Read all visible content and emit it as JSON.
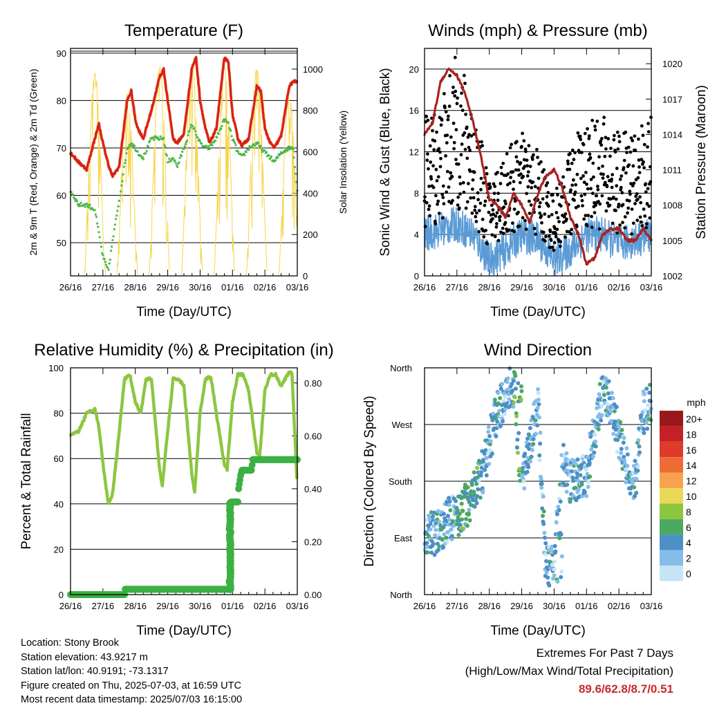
{
  "chart_data": [
    {
      "type": "line",
      "title": "Temperature (F)",
      "xlabel": "Time (Day/UTC)",
      "ylabel": "2m & 9m T (Red, Orange) & 2m Td (Green)",
      "y2label": "Solar Insolation (Yellow)",
      "x_ticks": [
        "26/16",
        "27/16",
        "28/16",
        "29/16",
        "30/16",
        "01/16",
        "02/16",
        "03/16"
      ],
      "ylim": [
        43,
        91
      ],
      "y_ticks": [
        50,
        60,
        70,
        80,
        90
      ],
      "y2lim": [
        0,
        1100
      ],
      "y2_ticks": [
        0,
        200,
        400,
        600,
        800,
        1000
      ],
      "x_hours": [
        0,
        6,
        12,
        18,
        21,
        24,
        28,
        31,
        36,
        42,
        45,
        48,
        50,
        54,
        60,
        66,
        69,
        72,
        76,
        79,
        84,
        90,
        93,
        96,
        100,
        103,
        108,
        114,
        117,
        120,
        124,
        127,
        132,
        138,
        141,
        144,
        148,
        151,
        156,
        162,
        165,
        168
      ],
      "series": [
        {
          "name": "2m T",
          "color": "#d71f1f",
          "values": [
            69,
            67,
            65.5,
            72,
            75,
            71,
            66.5,
            64,
            66,
            80,
            82,
            76,
            74,
            72,
            78,
            85,
            86.5,
            80,
            72,
            71,
            73,
            87,
            89,
            80,
            74,
            71,
            74,
            89,
            88,
            77,
            72,
            70.5,
            72,
            83,
            82,
            74,
            71,
            70,
            72.5,
            83,
            84,
            84
          ]
        },
        {
          "name": "2m Td",
          "color": "#4db848",
          "values": [
            61,
            58,
            58,
            57,
            52,
            47,
            44,
            50,
            59,
            70,
            71,
            70,
            69,
            68,
            72,
            72,
            72,
            67,
            68,
            66,
            70,
            75,
            73,
            71,
            70,
            70,
            72,
            76,
            75,
            72,
            69,
            68,
            70,
            71,
            70,
            69,
            68,
            67,
            69,
            70,
            70,
            61
          ]
        },
        {
          "name": "Solar Insolation",
          "color": "#f6d54a",
          "peaks": [
            980,
            880,
            1010,
            1020,
            1010,
            1000,
            870
          ]
        }
      ]
    },
    {
      "type": "line",
      "title": "Winds (mph) & Pressure (mb)",
      "xlabel": "Time (Day/UTC)",
      "ylabel": "Sonic Wind & Gust (Blue, Black)",
      "y2label": "Station Pressure (Maroon)",
      "x_ticks": [
        "26/16",
        "27/16",
        "28/16",
        "29/16",
        "30/16",
        "01/16",
        "02/16",
        "03/16"
      ],
      "ylim": [
        0,
        22
      ],
      "y_ticks": [
        0,
        4,
        8,
        12,
        16,
        20
      ],
      "y2lim": [
        1002,
        1021.3
      ],
      "y2_ticks": [
        1002,
        1005,
        1008,
        1011,
        1014,
        1017,
        1020
      ],
      "series": [
        {
          "name": "Pressure",
          "color": "#a82323",
          "x_hours": [
            0,
            6,
            12,
            18,
            24,
            30,
            36,
            42,
            48,
            54,
            60,
            66,
            72,
            78,
            84,
            90,
            96,
            102,
            108,
            114,
            120,
            126,
            132,
            138,
            144,
            150,
            156,
            162,
            168
          ],
          "values": [
            1014,
            1015,
            1018.5,
            1019.6,
            1019,
            1017.5,
            1015,
            1012,
            1008.5,
            1008,
            1007,
            1009,
            1008,
            1006.5,
            1009,
            1010.5,
            1011,
            1009.5,
            1007,
            1005.5,
            1003,
            1003.5,
            1005.5,
            1006,
            1006,
            1005,
            1005,
            1006,
            1005
          ]
        },
        {
          "name": "Sonic Wind",
          "color": "#5b9bd5",
          "x_hours": [
            0,
            12,
            24,
            36,
            48,
            60,
            72,
            84,
            96,
            108,
            120,
            132,
            144,
            156,
            168
          ],
          "values": [
            4,
            4.5,
            5,
            4,
            1.5,
            2.5,
            4,
            3.5,
            1.5,
            2.5,
            4,
            4,
            3,
            3.5,
            4
          ]
        },
        {
          "name": "Gust",
          "color": "#000000",
          "x_hours": [
            0,
            12,
            24,
            36,
            48,
            60,
            72,
            84,
            96,
            108,
            120,
            132,
            144,
            156,
            168
          ],
          "values": [
            10,
            11,
            14,
            11,
            6,
            8,
            9,
            8,
            5,
            8,
            10,
            10,
            9,
            9,
            10
          ]
        }
      ]
    },
    {
      "type": "line",
      "title": "Relative Humidity (%) & Precipitation (in)",
      "xlabel": "Time (Day/UTC)",
      "ylabel": "Percent & Total Rainfall",
      "x_ticks": [
        "26/16",
        "27/16",
        "28/16",
        "29/16",
        "30/16",
        "01/16",
        "02/16",
        "03/16"
      ],
      "ylim": [
        0,
        100
      ],
      "y_ticks": [
        0,
        20,
        40,
        60,
        80,
        100
      ],
      "y2lim": [
        0,
        0.857
      ],
      "y2_ticks": [
        "0.00",
        "0.20",
        "0.40",
        "0.60",
        "0.80"
      ],
      "series": [
        {
          "name": "Relative Humidity",
          "color": "#8cc63f",
          "x_hours": [
            0,
            6,
            12,
            18,
            21,
            24,
            28,
            31,
            34,
            40,
            44,
            48,
            52,
            56,
            60,
            66,
            68,
            72,
            76,
            80,
            84,
            90,
            92,
            96,
            100,
            104,
            108,
            114,
            116,
            120,
            124,
            128,
            132,
            138,
            140,
            144,
            148,
            152,
            156,
            162,
            164,
            168
          ],
          "values": [
            70,
            72,
            80,
            82,
            74,
            58,
            40,
            44,
            60,
            95,
            97,
            85,
            80,
            95,
            95,
            55,
            48,
            72,
            95,
            95,
            92,
            52,
            45,
            80,
            95,
            96,
            80,
            57,
            55,
            85,
            97,
            97,
            90,
            63,
            60,
            90,
            97,
            97,
            92,
            98,
            98,
            47
          ]
        },
        {
          "name": "Total Rainfall",
          "color": "#3cb043",
          "x_hours": [
            0,
            40,
            40.5,
            117,
            117.5,
            118,
            119,
            124,
            124.5,
            126,
            127,
            134,
            135,
            168
          ],
          "values": [
            0,
            0,
            0.02,
            0.02,
            0.05,
            0.33,
            0.35,
            0.35,
            0.4,
            0.45,
            0.47,
            0.47,
            0.51,
            0.51
          ]
        }
      ]
    },
    {
      "type": "scatter",
      "title": "Wind Direction",
      "xlabel": "Time (Day/UTC)",
      "ylabel": "Direction (Colored By Speed)",
      "x_ticks": [
        "26/16",
        "27/16",
        "28/16",
        "29/16",
        "30/16",
        "01/16",
        "02/16",
        "03/16"
      ],
      "y_ticks": [
        "North",
        "East",
        "South",
        "West",
        "North"
      ],
      "ylim": [
        0,
        360
      ],
      "x_hours": [
        0,
        6,
        12,
        18,
        24,
        30,
        36,
        40,
        44,
        48,
        54,
        60,
        66,
        72,
        78,
        84,
        90,
        96,
        102,
        108,
        114,
        120,
        126,
        132,
        138,
        144,
        150,
        156,
        162,
        168
      ],
      "values": [
        100,
        95,
        105,
        120,
        125,
        140,
        155,
        180,
        200,
        240,
        290,
        320,
        330,
        170,
        240,
        300,
        40,
        60,
        210,
        180,
        185,
        190,
        260,
        320,
        300,
        250,
        200,
        180,
        290,
        300
      ],
      "colorbar": {
        "title": "mph",
        "labels": [
          "20+",
          "18",
          "16",
          "14",
          "12",
          "10",
          "8",
          "6",
          "4",
          "2",
          "0"
        ],
        "colors": [
          "#99191a",
          "#c32125",
          "#df3a2a",
          "#ef6b34",
          "#f8a24d",
          "#e8d95a",
          "#8cc63f",
          "#4aa860",
          "#4b8fc6",
          "#86bde8",
          "#c5e5f7"
        ]
      }
    }
  ],
  "info": {
    "location": "Location: Stony Brook",
    "elevation": "Station elevation: 43.9217 m",
    "latlon": "Station lat/lon: 40.9191; -73.1317",
    "created": "Figure created on Thu, 2025-07-03, at 16:59 UTC",
    "recent": "Most recent data timestamp: 2025/07/03 16:15:00"
  },
  "extremes": {
    "line1": "Extremes For Past 7 Days",
    "line2": "(High/Low/Max Wind/Total Precipitation)",
    "values": "89.6/62.8/8.7/0.51"
  }
}
